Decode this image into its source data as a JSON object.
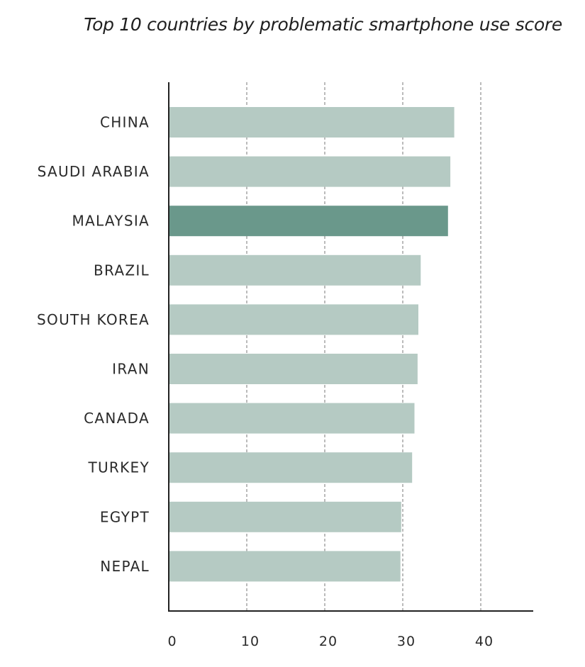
{
  "chart_data": {
    "type": "bar",
    "orientation": "horizontal",
    "title": "Top 10 countries by problematic smartphone use score",
    "xlabel": "",
    "ylabel": "",
    "categories": [
      "CHINA",
      "SAUDI ARABIA",
      "MALAYSIA",
      "BRAZIL",
      "SOUTH KOREA",
      "IRAN",
      "CANADA",
      "TURKEY",
      "EGYPT",
      "NEPAL"
    ],
    "values": [
      36.6,
      36.1,
      35.8,
      32.3,
      32.0,
      31.9,
      31.5,
      31.2,
      29.8,
      29.7
    ],
    "xlim": [
      0,
      47
    ],
    "xticks": [
      "0",
      "10",
      "20",
      "30",
      "40"
    ],
    "grid": "vertical dashed",
    "highlight_category": "MALAYSIA",
    "colors": {
      "bar": "#b5cac3",
      "highlight": "#6a988b",
      "grid": "#777777",
      "axis": "#222222"
    }
  }
}
